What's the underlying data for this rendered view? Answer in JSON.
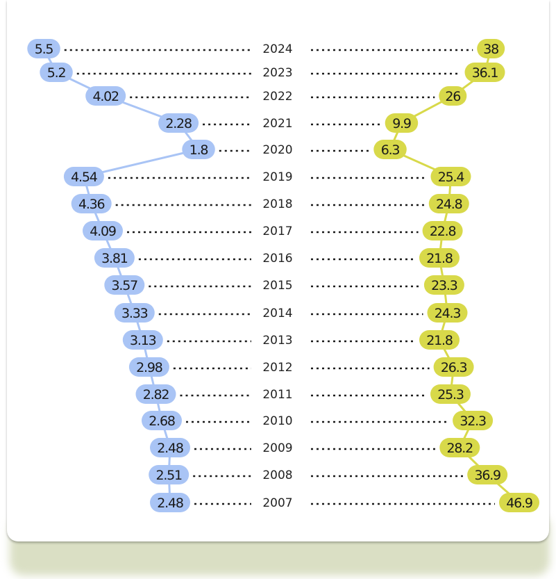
{
  "chart_data": {
    "type": "line",
    "years": [
      "2024",
      "2023",
      "2022",
      "2021",
      "2020",
      "2019",
      "2018",
      "2017",
      "2016",
      "2015",
      "2014",
      "2013",
      "2012",
      "2011",
      "2010",
      "2009",
      "2008",
      "2007"
    ],
    "series": [
      {
        "side": "left",
        "color": "#a9c4f5",
        "values": [
          5.5,
          5.2,
          4.02,
          2.28,
          1.8,
          4.54,
          4.36,
          4.09,
          3.81,
          3.57,
          3.33,
          3.13,
          2.98,
          2.82,
          2.68,
          2.48,
          2.51,
          2.48
        ],
        "labels": [
          "5.5",
          "5.2",
          "4.02",
          "2.28",
          "1.8",
          "4.54",
          "4.36",
          "4.09",
          "3.81",
          "3.57",
          "3.33",
          "3.13",
          "2.98",
          "2.82",
          "2.68",
          "2.48",
          "2.51",
          "2.48"
        ]
      },
      {
        "side": "right",
        "color": "#d8d94a",
        "values": [
          38,
          36.1,
          26,
          9.9,
          6.3,
          25.4,
          24.8,
          22.8,
          21.8,
          23.3,
          24.3,
          21.8,
          26.3,
          25.3,
          32.3,
          28.2,
          36.9,
          46.9
        ],
        "labels": [
          "38",
          "36.1",
          "26",
          "9.9",
          "6.3",
          "25.4",
          "24.8",
          "22.8",
          "21.8",
          "23.3",
          "24.3",
          "21.8",
          "26.3",
          "25.3",
          "32.3",
          "28.2",
          "36.9",
          "46.9"
        ]
      }
    ],
    "grid": false,
    "legend": "none"
  }
}
